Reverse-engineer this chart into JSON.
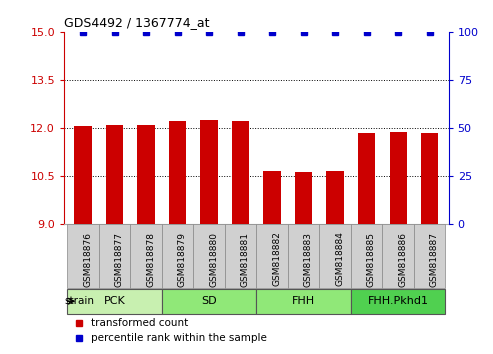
{
  "title": "GDS4492 / 1367774_at",
  "samples": [
    "GSM818876",
    "GSM818877",
    "GSM818878",
    "GSM818879",
    "GSM818880",
    "GSM818881",
    "GSM818882",
    "GSM818883",
    "GSM818884",
    "GSM818885",
    "GSM818886",
    "GSM818887"
  ],
  "bar_values": [
    12.05,
    12.1,
    12.08,
    12.22,
    12.24,
    12.22,
    10.65,
    10.63,
    10.65,
    11.85,
    11.87,
    11.85
  ],
  "percentile_values": [
    100,
    100,
    100,
    100,
    100,
    100,
    100,
    100,
    100,
    100,
    100,
    100
  ],
  "bar_color": "#cc0000",
  "percentile_color": "#0000cc",
  "ylim_left": [
    9,
    15
  ],
  "ylim_right": [
    0,
    100
  ],
  "yticks_left": [
    9,
    10.5,
    12,
    13.5,
    15
  ],
  "yticks_right": [
    0,
    25,
    50,
    75,
    100
  ],
  "dotted_lines": [
    10.5,
    12,
    13.5
  ],
  "groups": [
    {
      "label": "PCK",
      "start": 0,
      "end": 2,
      "color": "#c8f0b0"
    },
    {
      "label": "SD",
      "start": 3,
      "end": 5,
      "color": "#90e878"
    },
    {
      "label": "FHH",
      "start": 6,
      "end": 8,
      "color": "#90e878"
    },
    {
      "label": "FHH.Pkhd1",
      "start": 9,
      "end": 11,
      "color": "#50d050"
    }
  ],
  "strain_label": "strain",
  "legend_items": [
    {
      "label": "transformed count",
      "color": "#cc0000"
    },
    {
      "label": "percentile rank within the sample",
      "color": "#0000cc"
    }
  ],
  "bg_color": "#ffffff",
  "tick_label_color_left": "#cc0000",
  "tick_label_color_right": "#0000cc",
  "bar_width": 0.55,
  "xlabel_bg": "#d0d0d0"
}
